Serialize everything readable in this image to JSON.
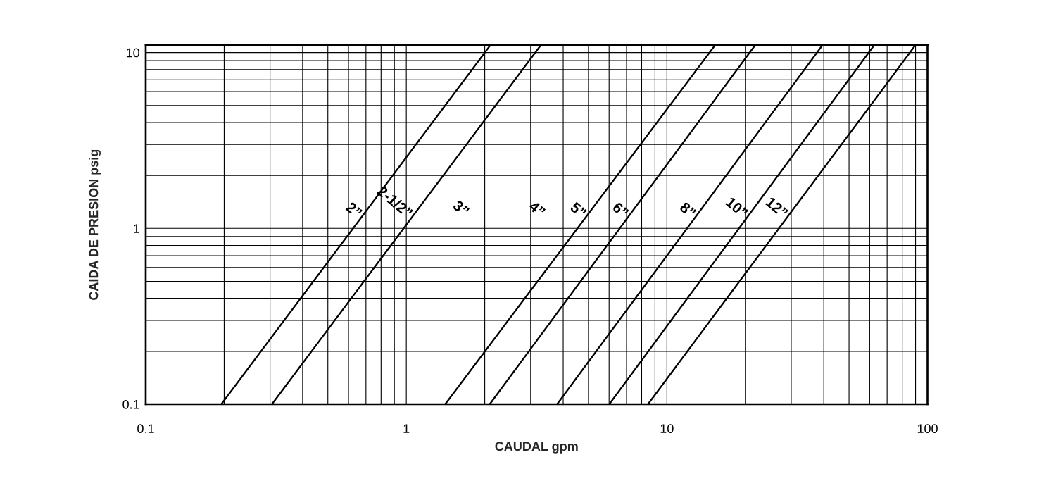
{
  "chart_data": {
    "type": "line",
    "xlabel": "CAUDAL gpm",
    "ylabel": "CAIDA DE PRESION psig",
    "log": "xy",
    "grid": true,
    "xlim": [
      0.1,
      100
    ],
    "ylim": [
      0.1,
      11
    ],
    "xticks": [
      0.1,
      {
        "value": 0.2,
        "label": null
      },
      {
        "value": 0.3,
        "label": null
      },
      {
        "value": 0.4,
        "label": null
      },
      {
        "value": 0.5,
        "label": null
      },
      {
        "value": 0.6,
        "label": null
      },
      {
        "value": 0.7,
        "label": null
      },
      {
        "value": 0.8,
        "label": null
      },
      {
        "value": 0.9,
        "label": null
      },
      1,
      {
        "value": 2,
        "label": null
      },
      {
        "value": 3,
        "label": null
      },
      {
        "value": 4,
        "label": null
      },
      {
        "value": 5,
        "label": null
      },
      {
        "value": 6,
        "label": null
      },
      {
        "value": 7,
        "label": null
      },
      {
        "value": 8,
        "label": null
      },
      {
        "value": 9,
        "label": null
      },
      10,
      {
        "value": 20,
        "label": null
      },
      {
        "value": 30,
        "label": null
      },
      {
        "value": 40,
        "label": null
      },
      {
        "value": 50,
        "label": null
      },
      {
        "value": 60,
        "label": null
      },
      {
        "value": 70,
        "label": null
      },
      {
        "value": 80,
        "label": null
      },
      {
        "value": 90,
        "label": null
      },
      100
    ],
    "yticks": [
      0.1,
      {
        "value": 0.2,
        "label": null
      },
      {
        "value": 0.3,
        "label": null
      },
      {
        "value": 0.4,
        "label": null
      },
      {
        "value": 0.5,
        "label": null
      },
      {
        "value": 0.6,
        "label": null
      },
      {
        "value": 0.7,
        "label": null
      },
      {
        "value": 0.8,
        "label": null
      },
      {
        "value": 0.9,
        "label": null
      },
      1,
      {
        "value": 2,
        "label": null
      },
      {
        "value": 3,
        "label": null
      },
      {
        "value": 4,
        "label": null
      },
      {
        "value": 5,
        "label": null
      },
      {
        "value": 6,
        "label": null
      },
      {
        "value": 7,
        "label": null
      },
      {
        "value": 8,
        "label": null
      },
      {
        "value": 9,
        "label": null
      },
      10
    ],
    "series": [
      {
        "name": "2”",
        "color": "#000000",
        "x": [
          0.195,
          2.1
        ],
        "values": [
          0.1,
          11
        ]
      },
      {
        "name": "2-1/2”",
        "color": "#000000",
        "x": [
          0.305,
          3.28
        ],
        "values": [
          0.1,
          11
        ]
      },
      {
        "name": "5”",
        "color": "#000000",
        "x": [
          1.41,
          15.3
        ],
        "values": [
          0.1,
          11
        ]
      },
      {
        "name": "6”",
        "color": "#000000",
        "x": [
          2.09,
          21.8
        ],
        "values": [
          0.1,
          11
        ]
      },
      {
        "name": "8”",
        "color": "#000000",
        "x": [
          3.79,
          39.5
        ],
        "values": [
          0.1,
          11
        ]
      },
      {
        "name": "10”",
        "color": "#000000",
        "x": [
          6.01,
          62.4
        ],
        "values": [
          0.1,
          11
        ]
      },
      {
        "name": "12”",
        "color": "#000000",
        "x": [
          8.46,
          89.8
        ],
        "values": [
          0.1,
          11
        ]
      }
    ],
    "annotations": [
      "3”",
      "4”"
    ]
  }
}
